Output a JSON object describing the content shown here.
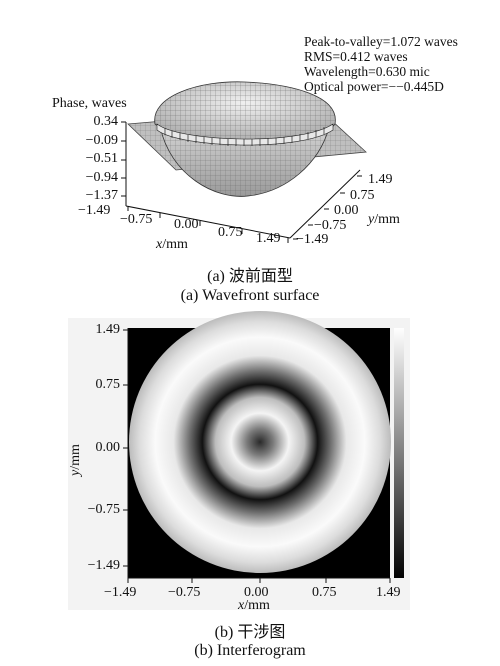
{
  "figure_a": {
    "info_lines": [
      "Peak-to-valley=1.072 waves",
      "RMS=0.412 waves",
      "Wavelength=0.630 mic",
      "Optical power=−−0.445D"
    ],
    "z_axis_label": "Phase, waves",
    "z_ticks": [
      "0.34",
      "−0.09",
      "−0.51",
      "−0.94",
      "−1.37"
    ],
    "x_ticks": [
      "−1.49",
      "−0.75",
      "0.00",
      "0.75",
      "1.49"
    ],
    "y_ticks": [
      "1.49",
      "0.75",
      "0.00",
      "−0.75",
      "−1.49"
    ],
    "x_label_var": "x",
    "x_label_unit": "/mm",
    "y_label_var": "y",
    "y_label_unit": "/mm",
    "caption_cn": "(a) 波前面型",
    "caption_en": "(a) Wavefront surface"
  },
  "figure_b": {
    "y_ticks": [
      "1.49",
      "0.75",
      "0.00",
      "−0.75",
      "−1.49"
    ],
    "x_ticks": [
      "−1.49",
      "−0.75",
      "0.00",
      "0.75",
      "1.49"
    ],
    "x_label_var": "x",
    "x_label_unit": "/mm",
    "y_label_var": "y",
    "y_label_unit": "/mm",
    "caption_cn": "(b) 干涉图",
    "caption_en": "(b) Interferogram"
  }
}
